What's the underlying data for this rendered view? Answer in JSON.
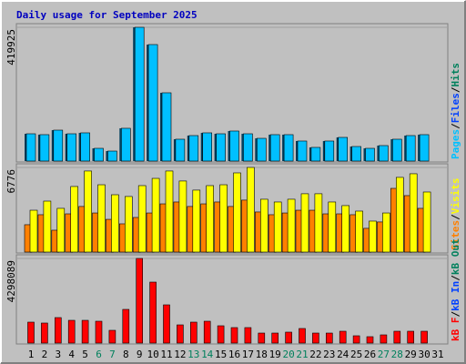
{
  "chart_data": {
    "type": "bar",
    "title": "Daily usage for September 2025",
    "categories": [
      "1",
      "2",
      "3",
      "4",
      "5",
      "6",
      "7",
      "8",
      "9",
      "10",
      "11",
      "12",
      "13",
      "14",
      "15",
      "16",
      "17",
      "18",
      "19",
      "20",
      "21",
      "22",
      "23",
      "24",
      "25",
      "26",
      "27",
      "28",
      "29",
      "30",
      "31"
    ],
    "category_colors": [
      "#000000",
      "#000000",
      "#000000",
      "#000000",
      "#000000",
      "#00805c",
      "#00805c",
      "#000000",
      "#000000",
      "#000000",
      "#000000",
      "#000000",
      "#00805c",
      "#00805c",
      "#000000",
      "#000000",
      "#000000",
      "#000000",
      "#000000",
      "#00805c",
      "#00805c",
      "#000000",
      "#000000",
      "#000000",
      "#000000",
      "#000000",
      "#00805c",
      "#00805c",
      "#000000",
      "#000000",
      "#000000"
    ],
    "separator": "/",
    "panels": [
      {
        "ylim": [
          0,
          419925
        ],
        "yticks": [
          419925
        ],
        "series": [
          {
            "name": "Pages",
            "color": "#00c0ff",
            "values": [
              85700,
              82900,
              97100,
              85700,
              88600,
              40000,
              31400,
              102900,
              419925,
              365700,
              214300,
              68600,
              80000,
              88600,
              85700,
              94300,
              85700,
              71400,
              82900,
              82900,
              62900,
              42900,
              62900,
              74300,
              45700,
              40000,
              48600,
              68600,
              80000,
              82900,
              null
            ]
          }
        ],
        "legend_extra": [
          {
            "name": "Files",
            "color": "#0040ff"
          },
          {
            "name": "Hits",
            "color": "#00805c"
          }
        ]
      },
      {
        "ylim": [
          0,
          6776
        ],
        "yticks": [
          6776
        ],
        "series": [
          {
            "name": "Sites",
            "color": "#ff8000",
            "values": [
              2190,
              2990,
              1750,
              3060,
              3650,
              3130,
              2620,
              2260,
              2770,
              3130,
              3860,
              4010,
              3650,
              3860,
              4010,
              3650,
              4160,
              3210,
              2990,
              3130,
              3350,
              3350,
              3060,
              3060,
              2990,
              1900,
              2410,
              5100,
              4520,
              3500,
              null
            ]
          },
          {
            "name": "Visits",
            "color": "#ffff00",
            "values": [
              3350,
              4080,
              3500,
              5250,
              6490,
              5390,
              4590,
              4450,
              5320,
              5900,
              6490,
              5690,
              4960,
              5320,
              5390,
              6340,
              6776,
              4230,
              4010,
              4230,
              4670,
              4670,
              4010,
              3720,
              3280,
              2480,
              3130,
              5980,
              6270,
              4810,
              null
            ]
          }
        ],
        "legend_extra": []
      },
      {
        "ylim": [
          0,
          4298089
        ],
        "yticks": [
          4298089
        ],
        "series": [
          {
            "name": "kB F",
            "color": "#ff0000",
            "values": [
              1063000,
              1017000,
              1294000,
              1155000,
              1155000,
              1109000,
              647000,
              1710000,
              4298089,
              3096000,
              1941000,
              924000,
              1063000,
              1109000,
              878000,
              786000,
              786000,
              508000,
              508000,
              555000,
              740000,
              508000,
              508000,
              601000,
              370000,
              324000,
              416000,
              601000,
              601000,
              601000,
              null
            ]
          }
        ],
        "legend_extra": [
          {
            "name": "kB In",
            "color": "#0040ff"
          },
          {
            "name": "kB Out",
            "color": "#00805c"
          }
        ]
      }
    ]
  }
}
